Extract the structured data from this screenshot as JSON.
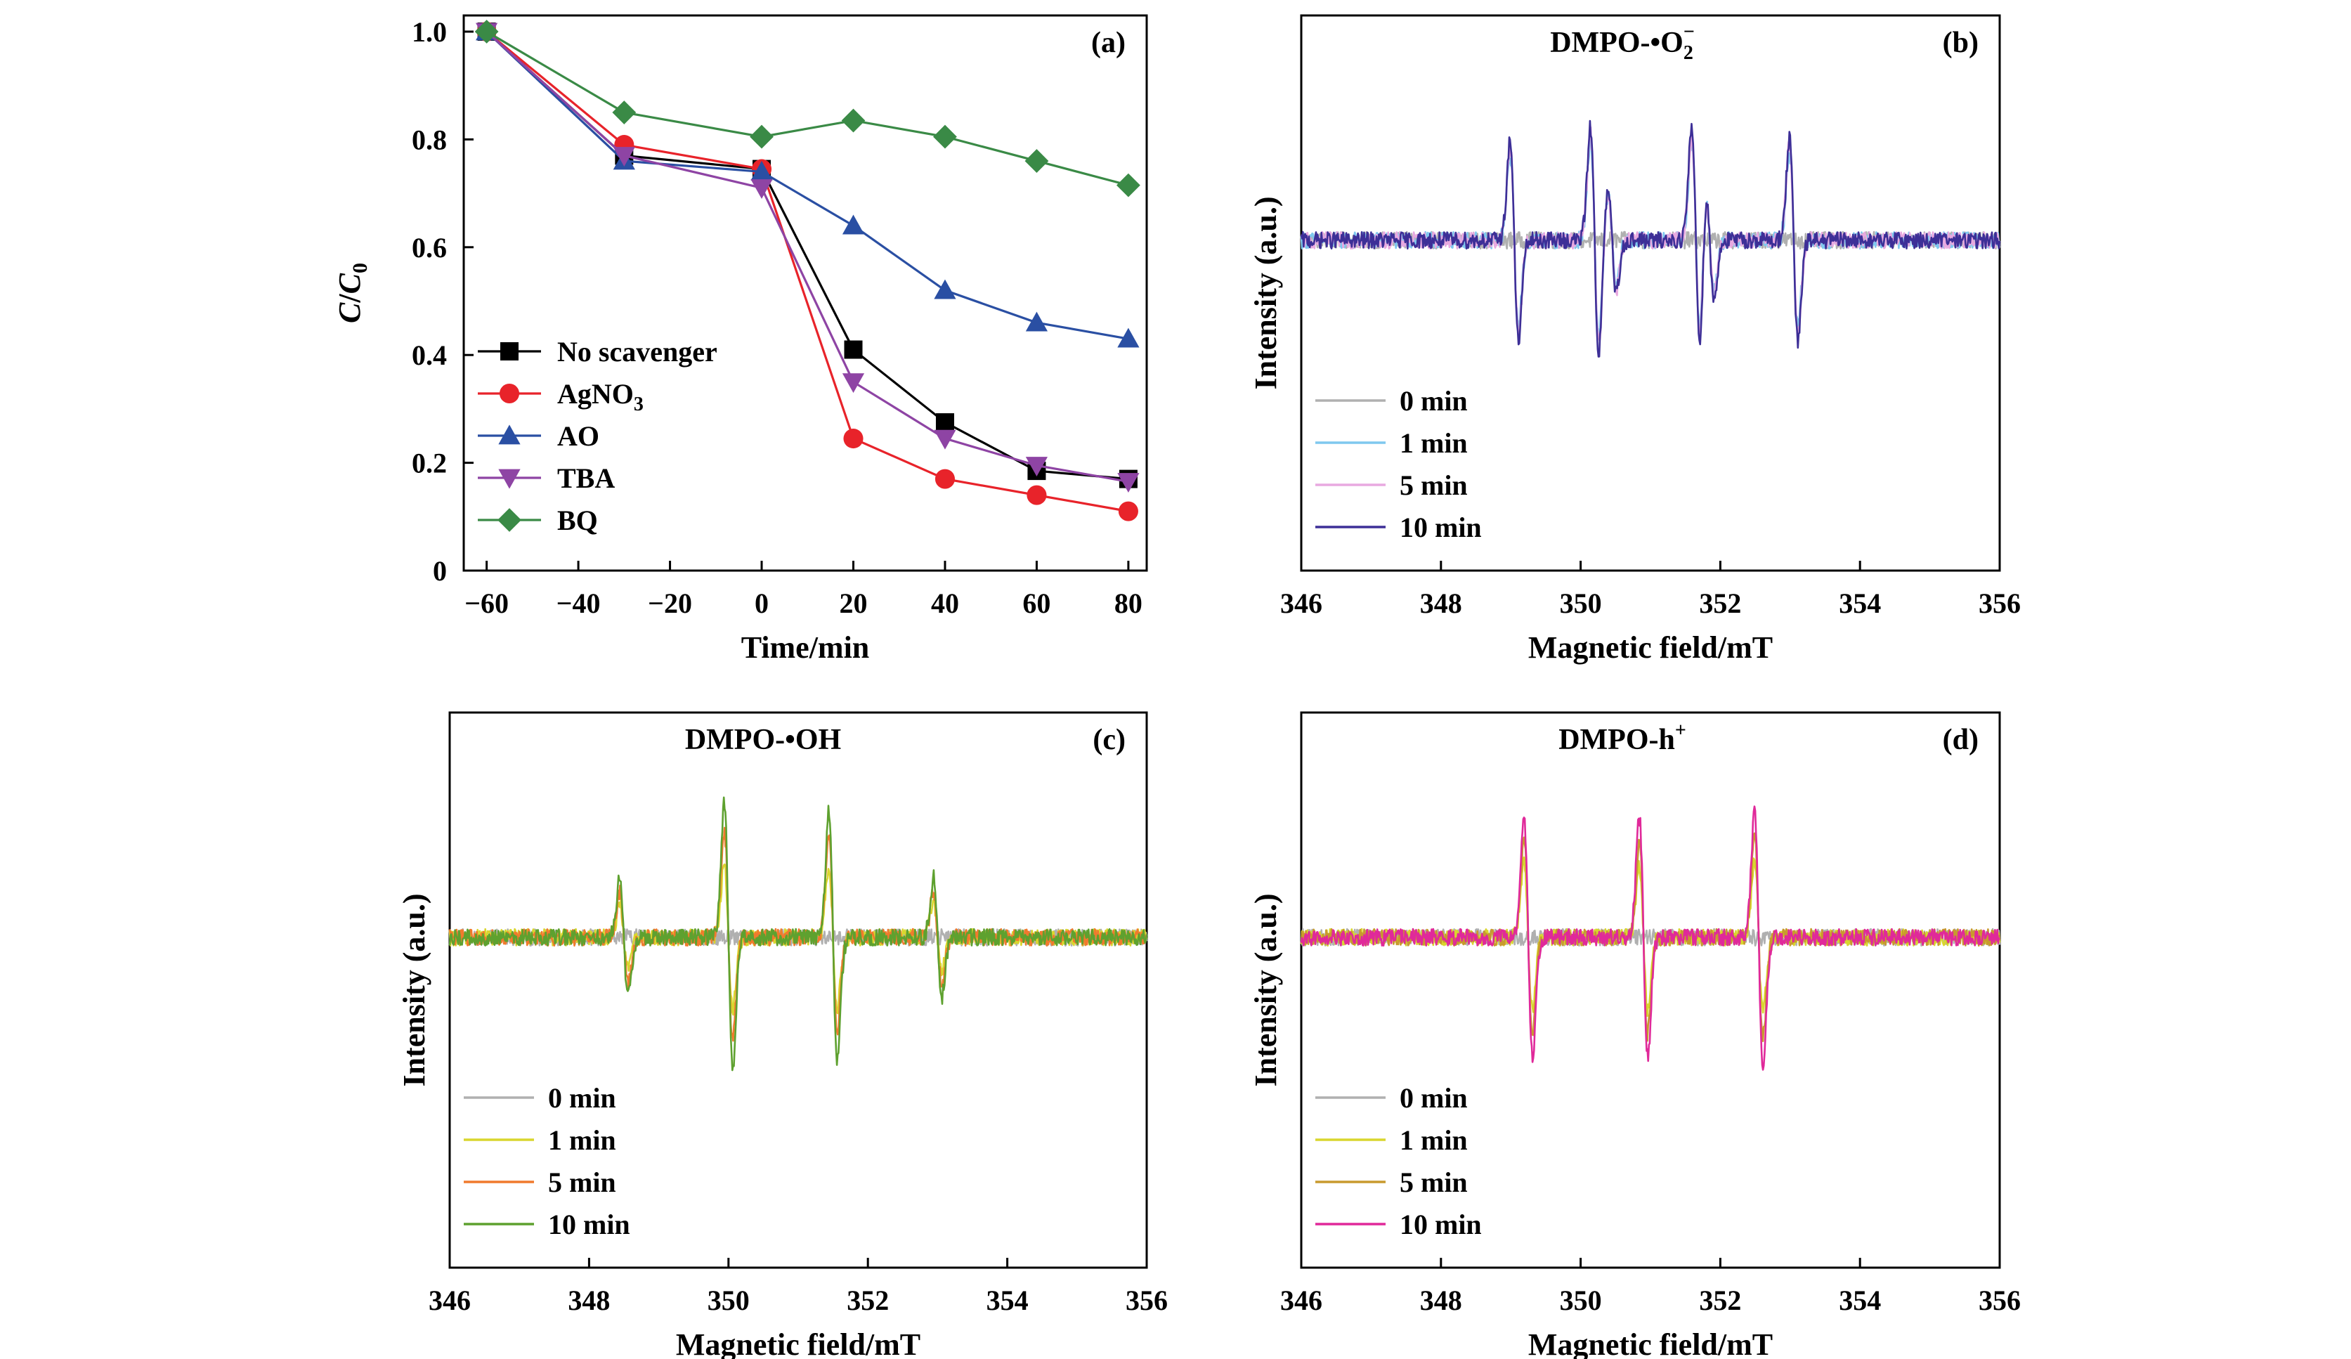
{
  "figure": {
    "panels": [
      "(a)",
      "(b)",
      "(c)",
      "(d)"
    ]
  },
  "chart_data": [
    {
      "id": "a",
      "type": "line",
      "panel_label": "(a)",
      "xlabel": "Time/min",
      "ylabel": "C/C0",
      "ylabel_parts": [
        "C",
        "/",
        "C",
        "0"
      ],
      "xlim": [
        -65,
        84
      ],
      "ylim": [
        0,
        1.03
      ],
      "xticks": [
        -60,
        -40,
        -20,
        0,
        20,
        40,
        60,
        80
      ],
      "xtick_labels": [
        "−60",
        "−40",
        "−20",
        "0",
        "20",
        "40",
        "60",
        "80"
      ],
      "yticks": [
        0,
        0.2,
        0.4,
        0.6,
        0.8,
        1.0
      ],
      "ytick_labels": [
        "0",
        "0.2",
        "0.4",
        "0.6",
        "0.8",
        "1.0"
      ],
      "legend_position": "bottom-left",
      "x": [
        -60,
        -30,
        0,
        20,
        40,
        60,
        80
      ],
      "series": [
        {
          "name": "No scavenger",
          "marker": "square",
          "color": "#000000",
          "values": [
            1.0,
            0.77,
            0.745,
            0.41,
            0.275,
            0.185,
            0.17
          ]
        },
        {
          "name": "AgNO3",
          "name_parts": [
            "AgNO",
            "3"
          ],
          "marker": "circle",
          "color": "#e8232a",
          "values": [
            1.0,
            0.79,
            0.745,
            0.245,
            0.17,
            0.14,
            0.11
          ]
        },
        {
          "name": "AO",
          "marker": "triangle-up",
          "color": "#2a4fa3",
          "values": [
            1.0,
            0.76,
            0.74,
            0.64,
            0.52,
            0.46,
            0.43
          ]
        },
        {
          "name": "TBA",
          "marker": "triangle-down",
          "color": "#8e44a4",
          "values": [
            1.0,
            0.77,
            0.71,
            0.35,
            0.245,
            0.195,
            0.165
          ]
        },
        {
          "name": "BQ",
          "marker": "diamond",
          "color": "#3a8a46",
          "values": [
            1.0,
            0.85,
            0.805,
            0.835,
            0.805,
            0.76,
            0.715
          ]
        }
      ]
    },
    {
      "id": "b",
      "type": "line",
      "panel_label": "(b)",
      "title": "DMPO-•O2−",
      "title_parts": [
        "DMPO-•O",
        "2",
        "−"
      ],
      "xlabel": "Magnetic field/mT",
      "ylabel": "Intensity (a.u.)",
      "xlim": [
        346,
        356
      ],
      "xticks": [
        346,
        348,
        350,
        352,
        354,
        356
      ],
      "xtick_labels": [
        "346",
        "348",
        "350",
        "352",
        "354",
        "356"
      ],
      "ylim": [
        -1,
        1
      ],
      "legend_position": "bottom-left",
      "peaks": [
        349.05,
        350.2,
        350.45,
        351.65,
        351.85,
        353.05
      ],
      "peak_amplitudes": [
        0.75,
        0.85,
        0.4,
        0.85,
        0.45,
        0.76
      ],
      "series": [
        {
          "name": "0 min",
          "color": "#b0b0b0",
          "scale": 0.0
        },
        {
          "name": "1 min",
          "color": "#7fc8ef",
          "scale": 0.85
        },
        {
          "name": "5 min",
          "color": "#e8a9e0",
          "scale": 0.93
        },
        {
          "name": "10 min",
          "color": "#3d2f97",
          "scale": 1.0
        }
      ]
    },
    {
      "id": "c",
      "type": "line",
      "panel_label": "(c)",
      "title": "DMPO-•OH",
      "xlabel": "Magnetic field/mT",
      "ylabel": "Intensity (a.u.)",
      "xlim": [
        346,
        356
      ],
      "xticks": [
        346,
        348,
        350,
        352,
        354,
        356
      ],
      "xtick_labels": [
        "346",
        "348",
        "350",
        "352",
        "354",
        "356"
      ],
      "ylim": [
        -1,
        1
      ],
      "legend_position": "bottom-left",
      "peaks": [
        348.5,
        350.0,
        351.5,
        353.0
      ],
      "peak_amplitudes": [
        0.45,
        1.0,
        0.95,
        0.45
      ],
      "series": [
        {
          "name": "0 min",
          "color": "#b0b0b0",
          "scale": 0.0
        },
        {
          "name": "1 min",
          "color": "#d9d62e",
          "scale": 0.55
        },
        {
          "name": "5 min",
          "color": "#f07a2d",
          "scale": 0.78
        },
        {
          "name": "10 min",
          "color": "#5ea12f",
          "scale": 1.0
        }
      ]
    },
    {
      "id": "d",
      "type": "line",
      "panel_label": "(d)",
      "title": "DMPO-h+",
      "title_parts": [
        "DMPO-h",
        "+"
      ],
      "xlabel": "Magnetic field/mT",
      "ylabel": "Intensity (a.u.)",
      "xlim": [
        346,
        356
      ],
      "xticks": [
        346,
        348,
        350,
        352,
        354,
        356
      ],
      "xtick_labels": [
        "346",
        "348",
        "350",
        "352",
        "354",
        "356"
      ],
      "ylim": [
        -1,
        1
      ],
      "legend_position": "bottom-left",
      "peaks": [
        349.25,
        350.9,
        352.55
      ],
      "peak_amplitudes": [
        0.9,
        0.9,
        0.95
      ],
      "series": [
        {
          "name": "0 min",
          "color": "#b0b0b0",
          "scale": 0.0
        },
        {
          "name": "1 min",
          "color": "#d9d62e",
          "scale": 0.6
        },
        {
          "name": "5 min",
          "color": "#c89a2e",
          "scale": 0.8
        },
        {
          "name": "10 min",
          "color": "#e0299a",
          "scale": 1.0
        }
      ]
    }
  ]
}
